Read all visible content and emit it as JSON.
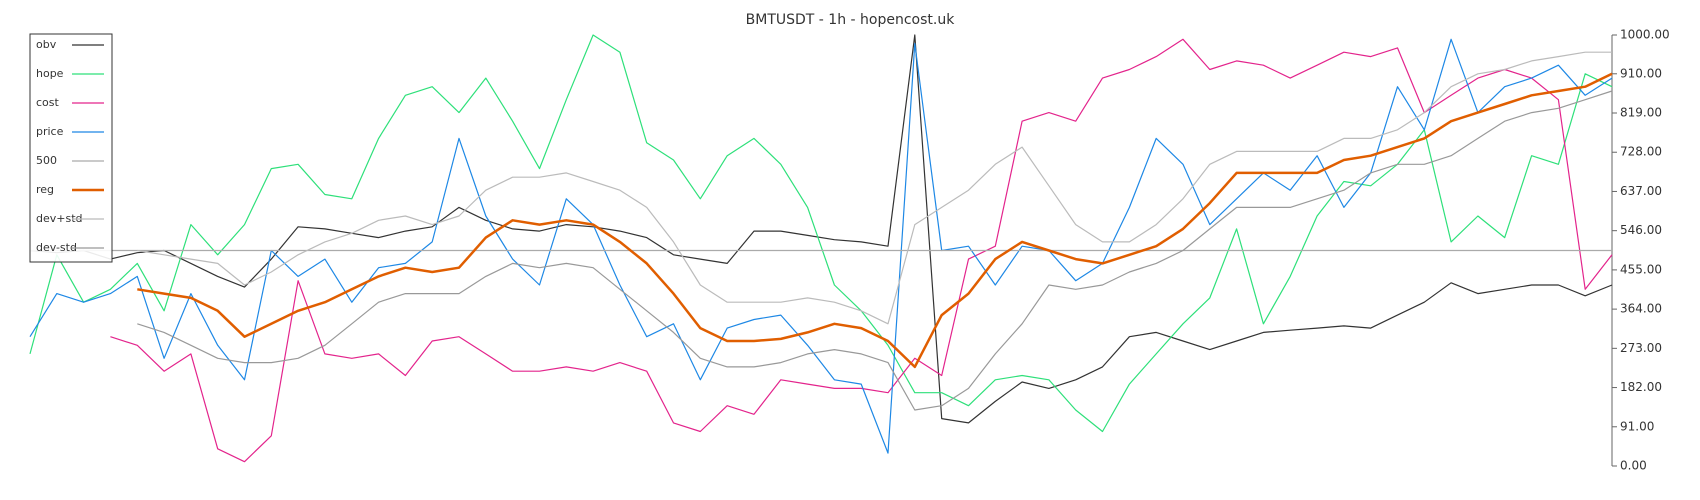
{
  "chart_data": {
    "type": "line",
    "title": "BMTUSDT - 1h - hopencost.uk",
    "categories": [
      null,
      null,
      null,
      null,
      null,
      null,
      null,
      null,
      null,
      null,
      null,
      null,
      null,
      null,
      null,
      null,
      null,
      null,
      null,
      null,
      null,
      null,
      null,
      null,
      null,
      null,
      null,
      null,
      null,
      null,
      null,
      null,
      null,
      null,
      null,
      null,
      null,
      null,
      null,
      null,
      null,
      null,
      null,
      null,
      null,
      null,
      null,
      null,
      null,
      null,
      null,
      null,
      null,
      null,
      null,
      null,
      null,
      null,
      null,
      null
    ],
    "ylim": [
      0,
      1000
    ],
    "yticks": [
      {
        "value": 0,
        "label": "0.00"
      },
      {
        "value": 91,
        "label": "91.00"
      },
      {
        "value": 182,
        "label": "182.00"
      },
      {
        "value": 273,
        "label": "273.00"
      },
      {
        "value": 364,
        "label": "364.00"
      },
      {
        "value": 455,
        "label": "455.00"
      },
      {
        "value": 546,
        "label": "546.00"
      },
      {
        "value": 637,
        "label": "637.00"
      },
      {
        "value": 728,
        "label": "728.00"
      },
      {
        "value": 819,
        "label": "819.00"
      },
      {
        "value": 910,
        "label": "910.00"
      },
      {
        "value": 1000,
        "label": "1000.00"
      }
    ],
    "y_axis_side": "right",
    "legend": "top-left",
    "series": [
      {
        "name": "obv",
        "color": "#333333",
        "values": [
          500,
          495,
          500,
          480,
          495,
          500,
          470,
          440,
          415,
          480,
          555,
          550,
          540,
          530,
          545,
          555,
          600,
          570,
          550,
          545,
          560,
          555,
          545,
          530,
          490,
          480,
          470,
          545,
          545,
          535,
          525,
          520,
          510,
          1000,
          110,
          100,
          150,
          195,
          180,
          200,
          230,
          300,
          310,
          290,
          270,
          290,
          310,
          315,
          320,
          325,
          320,
          350,
          380,
          425,
          400,
          410,
          420,
          420,
          395,
          420
        ]
      },
      {
        "name": "hope",
        "color": "#2ee07a",
        "values": [
          260,
          490,
          380,
          410,
          470,
          360,
          560,
          490,
          560,
          690,
          700,
          630,
          620,
          760,
          860,
          880,
          820,
          900,
          800,
          690,
          850,
          1000,
          960,
          750,
          710,
          620,
          720,
          760,
          700,
          600,
          420,
          360,
          280,
          170,
          170,
          140,
          200,
          210,
          200,
          130,
          80,
          190,
          260,
          330,
          390,
          550,
          330,
          440,
          580,
          660,
          650,
          700,
          780,
          520,
          580,
          530,
          720,
          700,
          910,
          880
        ]
      },
      {
        "name": "cost",
        "color": "#e3248c",
        "values": [
          null,
          null,
          null,
          300,
          280,
          220,
          260,
          40,
          10,
          70,
          430,
          260,
          250,
          260,
          210,
          290,
          300,
          260,
          220,
          220,
          230,
          220,
          240,
          220,
          100,
          80,
          140,
          120,
          200,
          190,
          180,
          180,
          170,
          250,
          210,
          480,
          510,
          800,
          820,
          800,
          900,
          920,
          950,
          990,
          920,
          940,
          930,
          900,
          930,
          960,
          950,
          970,
          820,
          860,
          900,
          920,
          900,
          850,
          410,
          490
        ]
      },
      {
        "name": "price",
        "color": "#1e88e5",
        "values": [
          300,
          400,
          380,
          400,
          440,
          250,
          400,
          280,
          200,
          500,
          440,
          480,
          380,
          460,
          470,
          520,
          760,
          580,
          480,
          420,
          620,
          560,
          420,
          300,
          330,
          200,
          320,
          340,
          350,
          280,
          200,
          190,
          30,
          980,
          500,
          510,
          420,
          510,
          500,
          430,
          470,
          600,
          760,
          700,
          560,
          620,
          680,
          640,
          720,
          600,
          680,
          880,
          780,
          990,
          820,
          880,
          900,
          930,
          860,
          900
        ]
      },
      {
        "name": "500",
        "color": "#aaaaaa",
        "values": [
          500,
          500,
          500,
          500,
          500,
          500,
          500,
          500,
          500,
          500,
          500,
          500,
          500,
          500,
          500,
          500,
          500,
          500,
          500,
          500,
          500,
          500,
          500,
          500,
          500,
          500,
          500,
          500,
          500,
          500,
          500,
          500,
          500,
          500,
          500,
          500,
          500,
          500,
          500,
          500,
          500,
          500,
          500,
          500,
          500,
          500,
          500,
          500,
          500,
          500,
          500,
          500,
          500,
          500,
          500,
          500,
          500,
          500,
          500,
          500
        ]
      },
      {
        "name": "reg",
        "color": "#e05e00",
        "width": 2.5,
        "values": [
          null,
          null,
          null,
          null,
          410,
          400,
          390,
          360,
          300,
          330,
          360,
          380,
          410,
          440,
          460,
          450,
          460,
          530,
          570,
          560,
          570,
          560,
          520,
          470,
          400,
          320,
          290,
          290,
          295,
          310,
          330,
          320,
          290,
          230,
          350,
          400,
          480,
          520,
          500,
          480,
          470,
          490,
          510,
          550,
          610,
          680,
          680,
          680,
          680,
          710,
          720,
          740,
          760,
          800,
          820,
          840,
          860,
          870,
          880,
          910
        ]
      },
      {
        "name": "dev+std",
        "color": "#bbbbbb",
        "values": [
          null,
          null,
          null,
          null,
          500,
          490,
          480,
          470,
          420,
          450,
          490,
          520,
          540,
          570,
          580,
          560,
          580,
          640,
          670,
          670,
          680,
          660,
          640,
          600,
          520,
          420,
          380,
          380,
          380,
          390,
          380,
          360,
          330,
          560,
          600,
          640,
          700,
          740,
          650,
          560,
          520,
          520,
          560,
          620,
          700,
          730,
          730,
          730,
          730,
          760,
          760,
          780,
          820,
          880,
          910,
          920,
          940,
          950,
          960,
          960
        ]
      },
      {
        "name": "dev-std",
        "color": "#999999",
        "values": [
          null,
          null,
          null,
          null,
          330,
          310,
          280,
          250,
          240,
          240,
          250,
          280,
          330,
          380,
          400,
          400,
          400,
          440,
          470,
          460,
          470,
          460,
          410,
          360,
          310,
          250,
          230,
          230,
          240,
          260,
          270,
          260,
          240,
          130,
          140,
          180,
          260,
          330,
          420,
          410,
          420,
          450,
          470,
          500,
          550,
          600,
          600,
          600,
          620,
          640,
          680,
          700,
          700,
          720,
          760,
          800,
          820,
          830,
          850,
          870
        ]
      }
    ]
  }
}
